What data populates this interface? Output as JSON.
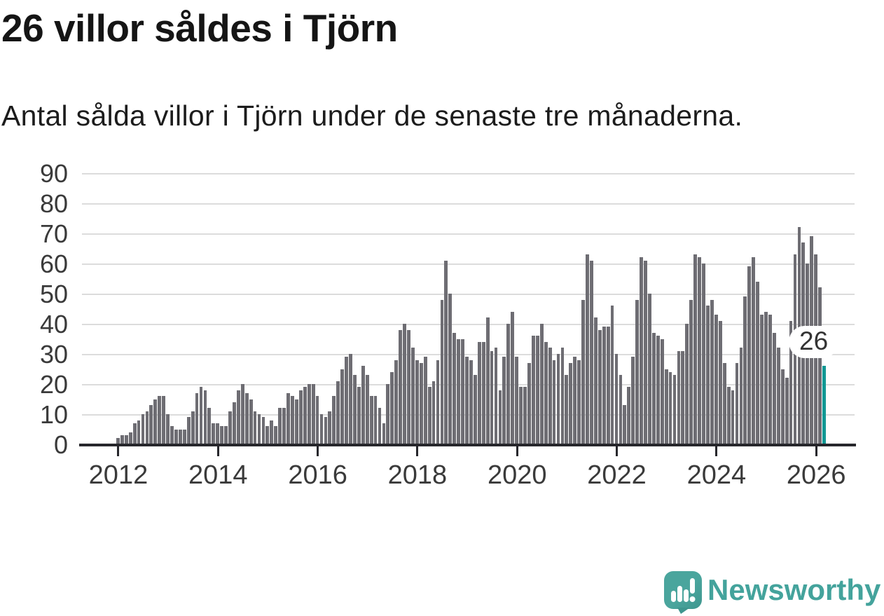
{
  "title": "26 villor såldes i Tjörn",
  "subtitle": "Antal sålda villor i Tjörn under de senaste tre månaderna.",
  "annotation": {
    "label": "26"
  },
  "footer": {
    "brand": "Newsworthy"
  },
  "colors": {
    "bar": "#6e6d73",
    "highlight": "#119894",
    "grid": "#dcdcdc",
    "axis": "#27272c",
    "tick_text": "#3a3a3a",
    "title_text": "#151515",
    "brand_teal": "#44a39c",
    "logo_bubble": "#4aa59d"
  },
  "chart_data": {
    "type": "bar",
    "title": "26 villor såldes i Tjörn",
    "subtitle": "Antal sålda villor i Tjörn under de senaste tre månaderna.",
    "xlabel": "",
    "ylabel": "",
    "ylim": [
      0,
      90
    ],
    "yticks": [
      0,
      10,
      20,
      30,
      40,
      50,
      60,
      70,
      80,
      90
    ],
    "xticks": [
      2012,
      2014,
      2016,
      2018,
      2020,
      2022,
      2024,
      2026
    ],
    "grid": "horizontal",
    "legend": "none",
    "bars_per_year": 12,
    "first_bar_year": 2012,
    "highlight_last_bar": true,
    "last_bar_value": 26,
    "values": [
      2,
      3,
      3,
      4,
      7,
      8,
      10,
      11,
      13,
      15,
      16,
      16,
      10,
      6,
      5,
      5,
      5,
      9,
      11,
      17,
      19,
      18,
      12,
      7,
      7,
      6,
      6,
      11,
      14,
      18,
      20,
      17,
      15,
      11,
      10,
      9,
      6,
      8,
      6,
      12,
      12,
      17,
      16,
      15,
      18,
      19,
      20,
      20,
      16,
      10,
      9,
      11,
      16,
      21,
      25,
      29,
      30,
      23,
      19,
      26,
      23,
      16,
      16,
      12,
      7,
      20,
      24,
      28,
      38,
      40,
      38,
      32,
      28,
      27,
      29,
      19,
      21,
      28,
      48,
      61,
      50,
      37,
      35,
      35,
      29,
      28,
      23,
      34,
      34,
      42,
      31,
      32,
      18,
      29,
      40,
      44,
      29,
      19,
      19,
      27,
      36,
      36,
      40,
      34,
      32,
      28,
      30,
      32,
      23,
      27,
      29,
      28,
      48,
      63,
      61,
      42,
      38,
      39,
      39,
      46,
      30,
      23,
      13,
      19,
      29,
      48,
      62,
      61,
      50,
      37,
      36,
      35,
      25,
      24,
      23,
      31,
      31,
      40,
      48,
      63,
      62,
      60,
      46,
      48,
      43,
      41,
      27,
      19,
      18,
      27,
      32,
      49,
      59,
      62,
      54,
      43,
      44,
      43,
      37,
      32,
      25,
      22,
      41,
      63,
      72,
      67,
      60,
      69,
      63,
      52,
      26
    ]
  }
}
